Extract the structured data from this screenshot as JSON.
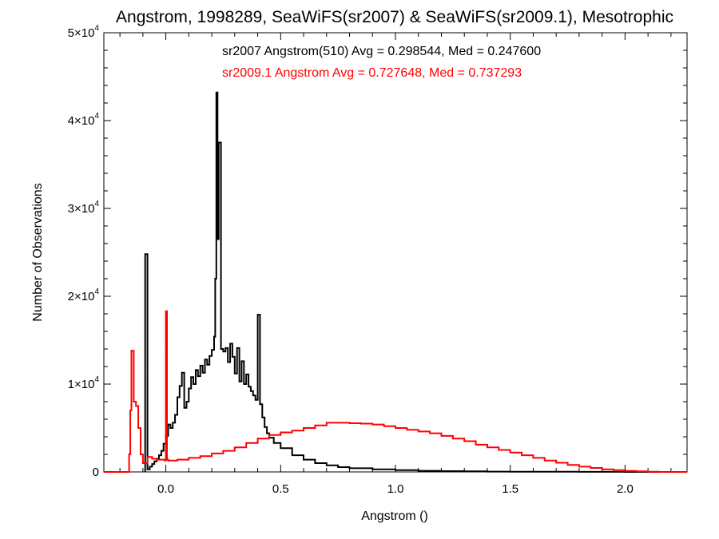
{
  "chart_data": {
    "type": "line",
    "title": "Angstrom, 1998289, SeaWiFS(sr2007) & SeaWiFS(sr2009.1), Mesotrophic",
    "xlabel": "Angstrom ()",
    "ylabel": "Number of Observations",
    "xlim": [
      -0.27,
      2.27
    ],
    "ylim": [
      0,
      50000
    ],
    "x_ticks": [
      0.0,
      0.5,
      1.0,
      1.5,
      2.0
    ],
    "x_tick_labels": [
      "0.0",
      "0.5",
      "1.0",
      "1.5",
      "2.0"
    ],
    "y_ticks": [
      0,
      10000,
      20000,
      30000,
      40000,
      50000
    ],
    "y_tick_labels": [
      {
        "mant": "0",
        "exp": ""
      },
      {
        "mant": "1×10",
        "exp": "4"
      },
      {
        "mant": "2×10",
        "exp": "4"
      },
      {
        "mant": "3×10",
        "exp": "4"
      },
      {
        "mant": "4×10",
        "exp": "4"
      },
      {
        "mant": "5×10",
        "exp": "4"
      }
    ],
    "grid": false,
    "series": [
      {
        "name": "sr2007 Angstrom(510) Avg = 0.298544, Med = 0.247600",
        "color": "#000000",
        "x": [
          -0.09,
          -0.09,
          -0.08,
          -0.07,
          -0.06,
          -0.05,
          -0.04,
          -0.03,
          -0.02,
          -0.01,
          0.0,
          0.01,
          0.02,
          0.03,
          0.04,
          0.05,
          0.06,
          0.07,
          0.08,
          0.09,
          0.1,
          0.11,
          0.12,
          0.13,
          0.14,
          0.15,
          0.16,
          0.17,
          0.18,
          0.19,
          0.2,
          0.21,
          0.215,
          0.22,
          0.225,
          0.23,
          0.24,
          0.25,
          0.26,
          0.27,
          0.28,
          0.29,
          0.3,
          0.31,
          0.32,
          0.33,
          0.34,
          0.35,
          0.36,
          0.37,
          0.38,
          0.39,
          0.4,
          0.41,
          0.42,
          0.43,
          0.44,
          0.45,
          0.47,
          0.5,
          0.55,
          0.6,
          0.65,
          0.7,
          0.75,
          0.8,
          0.9,
          1.0,
          1.1,
          1.2,
          1.3,
          1.4,
          1.5,
          1.6,
          1.8,
          2.0,
          2.1,
          2.15
        ],
        "y": [
          0,
          24800,
          300,
          600,
          900,
          1200,
          1500,
          1900,
          2400,
          3200,
          4100,
          5400,
          5000,
          5600,
          6500,
          8500,
          9800,
          11300,
          7300,
          8000,
          9500,
          10800,
          10000,
          11600,
          10900,
          12100,
          11300,
          12800,
          12200,
          13200,
          13900,
          15400,
          22000,
          43200,
          26500,
          37500,
          14000,
          13700,
          14100,
          12500,
          14600,
          13100,
          11200,
          14100,
          10300,
          12600,
          10000,
          11100,
          9700,
          9200,
          8700,
          8200,
          17900,
          7700,
          6200,
          5100,
          4400,
          3900,
          3300,
          2700,
          1900,
          1400,
          1000,
          750,
          550,
          420,
          300,
          200,
          130,
          90,
          60,
          40,
          25,
          15,
          8,
          4,
          2,
          0
        ]
      },
      {
        "name": "sr2009.1 Angstrom Avg = 0.727648, Med = 0.737293",
        "color": "#ff0000",
        "x": [
          -0.165,
          -0.16,
          -0.155,
          -0.15,
          -0.14,
          -0.13,
          -0.12,
          -0.11,
          -0.1,
          -0.08,
          -0.06,
          -0.04,
          -0.02,
          -0.005,
          0.0,
          0.005,
          0.01,
          0.02,
          0.05,
          0.1,
          0.15,
          0.2,
          0.25,
          0.3,
          0.35,
          0.4,
          0.45,
          0.5,
          0.55,
          0.6,
          0.65,
          0.7,
          0.75,
          0.8,
          0.85,
          0.9,
          0.95,
          1.0,
          1.05,
          1.1,
          1.15,
          1.2,
          1.25,
          1.3,
          1.35,
          1.4,
          1.45,
          1.5,
          1.55,
          1.6,
          1.65,
          1.7,
          1.75,
          1.8,
          1.85,
          1.9,
          1.95,
          2.0,
          2.05,
          2.1,
          2.15
        ],
        "y": [
          0,
          2000,
          7000,
          13800,
          8000,
          7500,
          5000,
          2000,
          1000,
          1700,
          1500,
          1400,
          1400,
          1300,
          18300,
          1400,
          1300,
          1300,
          1400,
          1600,
          1800,
          2100,
          2400,
          2800,
          3300,
          3800,
          4200,
          4500,
          4700,
          5000,
          5300,
          5600,
          5600,
          5550,
          5500,
          5400,
          5200,
          5000,
          4800,
          4600,
          4400,
          4100,
          3800,
          3500,
          3100,
          2800,
          2500,
          2200,
          1900,
          1600,
          1300,
          1050,
          800,
          600,
          450,
          300,
          200,
          120,
          60,
          20,
          0
        ]
      }
    ]
  }
}
